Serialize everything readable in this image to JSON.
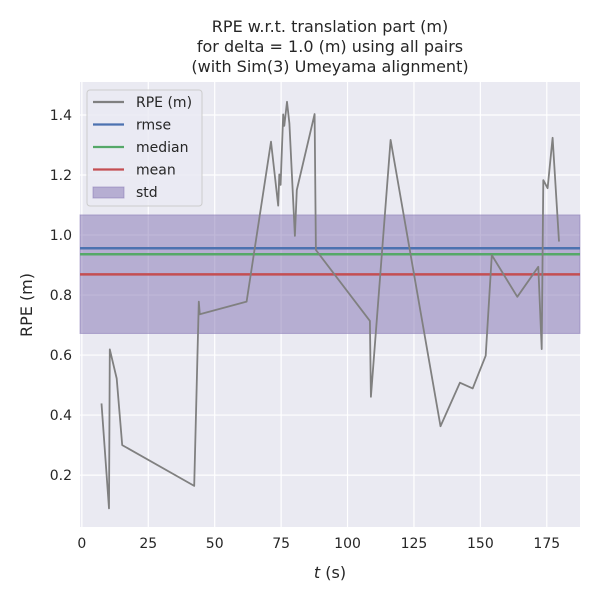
{
  "chart_data": {
    "type": "line",
    "title": [
      "RPE w.r.t. translation part (m)",
      "for delta = 1.0 (m) using all pairs",
      "(with Sim(3) Umeyama alignment)"
    ],
    "xlabel_italic": "t",
    "xlabel_rest": " (s)",
    "ylabel": "RPE (m)",
    "xlim": [
      -0.7,
      187.5
    ],
    "ylim": [
      0.027,
      1.51
    ],
    "xticks": [
      0,
      25,
      50,
      75,
      100,
      125,
      150,
      175
    ],
    "xtick_labels": [
      "0",
      "25",
      "50",
      "75",
      "100",
      "125",
      "150",
      "175"
    ],
    "yticks": [
      0.2,
      0.4,
      0.6,
      0.8,
      1.0,
      1.2,
      1.4
    ],
    "ytick_labels": [
      "0.2",
      "0.4",
      "0.6",
      "0.8",
      "1.0",
      "1.2",
      "1.4"
    ],
    "grid": true,
    "legend_position": "top-left",
    "series": [
      {
        "name": "RPE (m)",
        "color": "#808080",
        "x": [
          7.4,
          10.2,
          10.5,
          13.1,
          15.2,
          42.3,
          44.0,
          44.4,
          62.0,
          71.2,
          73.9,
          74.3,
          74.8,
          75.8,
          76.2,
          77.2,
          78.1,
          80.2,
          80.9,
          87.6,
          88.1,
          108.4,
          108.8,
          116.2,
          135.0,
          142.3,
          147.1,
          152.0,
          154.3,
          163.9,
          171.8,
          173.1,
          173.7,
          175.3,
          177.2,
          179.6
        ],
        "y": [
          0.439,
          0.089,
          0.619,
          0.522,
          0.3,
          0.164,
          0.778,
          0.736,
          0.778,
          1.311,
          1.098,
          1.202,
          1.167,
          1.402,
          1.364,
          1.444,
          1.372,
          0.997,
          1.15,
          1.403,
          0.95,
          0.714,
          0.461,
          1.317,
          0.363,
          0.508,
          0.489,
          0.598,
          0.933,
          0.794,
          0.894,
          0.62,
          1.183,
          1.156,
          1.324,
          0.978
        ]
      }
    ],
    "hlines": [
      {
        "name": "rmse",
        "value": 0.956,
        "color": "#4c72b0"
      },
      {
        "name": "median",
        "value": 0.936,
        "color": "#55a868"
      },
      {
        "name": "mean",
        "value": 0.869,
        "color": "#c44e52"
      }
    ],
    "band": {
      "name": "std",
      "low": 0.672,
      "high": 1.067,
      "color": "#8172b2"
    },
    "legend": [
      "RPE (m)",
      "rmse",
      "median",
      "mean",
      "std"
    ]
  }
}
